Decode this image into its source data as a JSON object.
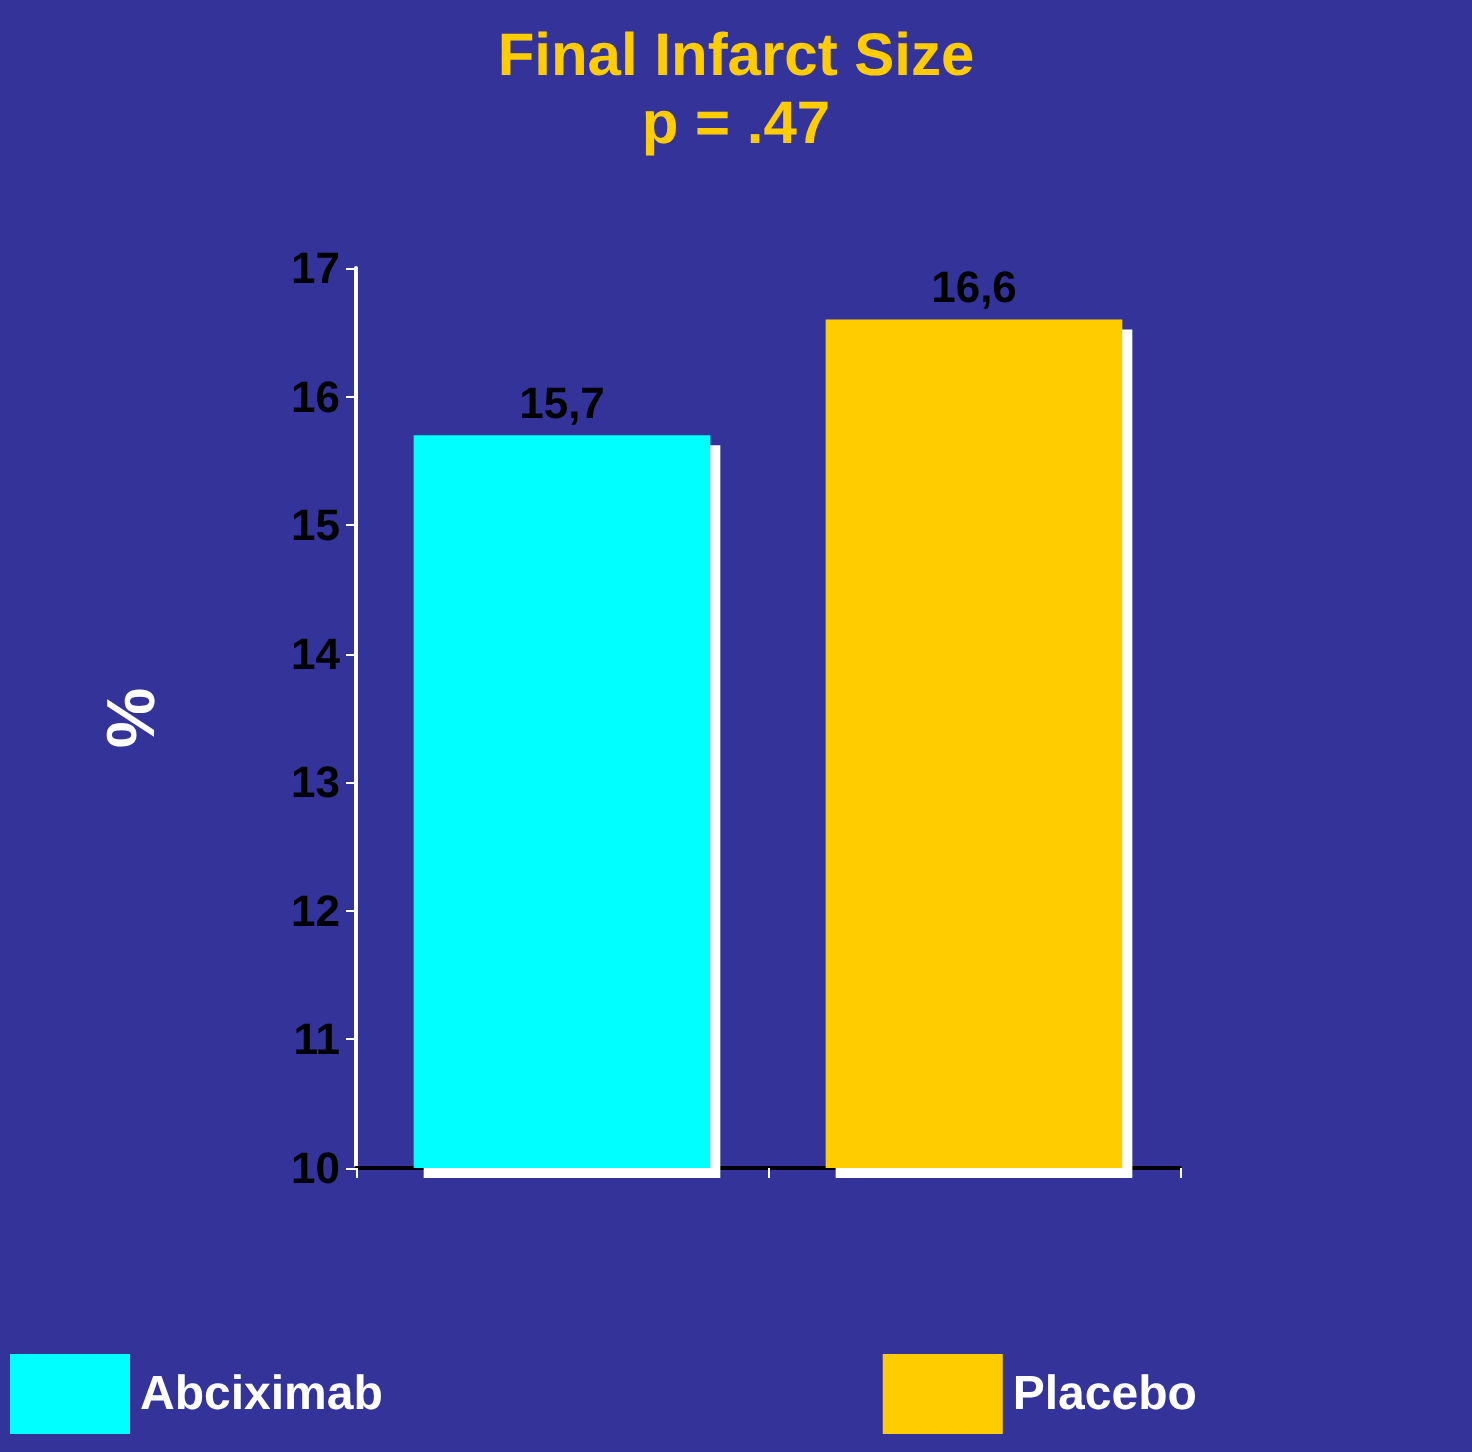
{
  "chart_data": {
    "type": "bar",
    "title": "Final Infarct Size",
    "subtitle": "p = .47",
    "ylabel": "%",
    "categories": [
      null,
      null
    ],
    "series": [
      {
        "name": "Abciximab",
        "color": "#00ffff",
        "values": [
          15.7,
          null
        ],
        "value_labels": [
          "15,7",
          null
        ]
      },
      {
        "name": "Placebo",
        "color": "#ffcc00",
        "values": [
          null,
          16.6
        ],
        "value_labels": [
          null,
          "16,6"
        ]
      }
    ],
    "ylim": [
      10,
      17
    ],
    "yticks": [
      10,
      11,
      12,
      13,
      14,
      15,
      16,
      17
    ],
    "grid": false,
    "legend": "bottom"
  }
}
